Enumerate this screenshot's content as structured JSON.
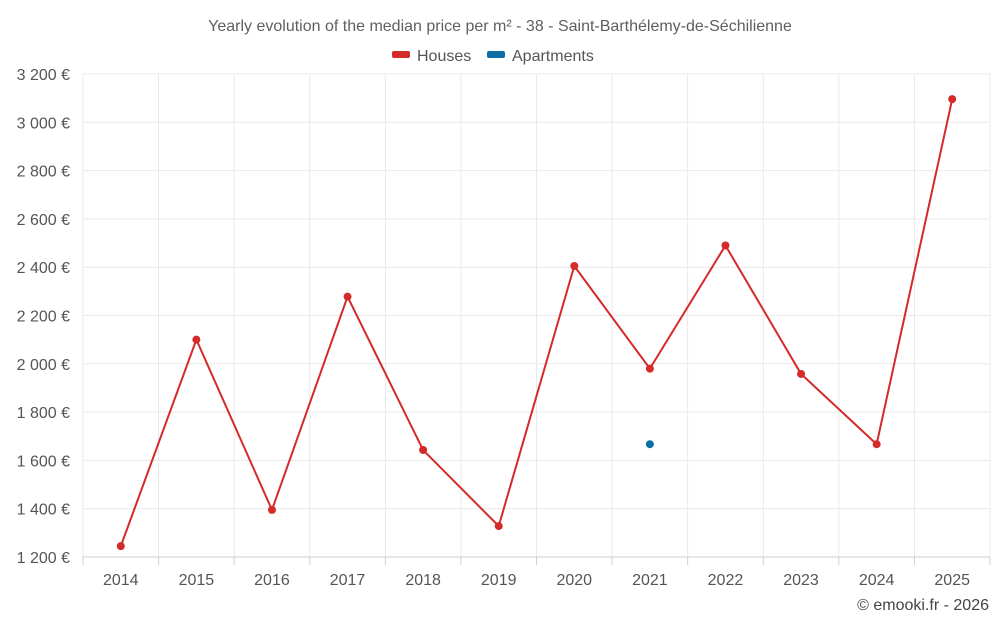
{
  "chart_data": {
    "type": "line",
    "title": "Yearly evolution of the median price per m² - 38 - Saint-Barthélemy-de-Séchilienne",
    "xlabel": "",
    "ylabel": "",
    "categories": [
      "2014",
      "2015",
      "2016",
      "2017",
      "2018",
      "2019",
      "2020",
      "2021",
      "2022",
      "2023",
      "2024",
      "2025"
    ],
    "ylim": [
      1200,
      3200
    ],
    "yticks": [
      1200,
      1400,
      1600,
      1800,
      2000,
      2200,
      2400,
      2600,
      2800,
      3000,
      3200
    ],
    "ytick_labels": [
      "1 200 €",
      "1 400 €",
      "1 600 €",
      "1 800 €",
      "2 000 €",
      "2 200 €",
      "2 400 €",
      "2 600 €",
      "2 800 €",
      "3 000 €",
      "3 200 €"
    ],
    "grid": true,
    "legend_position": "top-center",
    "series": [
      {
        "name": "Houses",
        "color": "#d42a2a",
        "values": [
          1245,
          2100,
          1395,
          2278,
          1643,
          1328,
          2405,
          1980,
          2490,
          1958,
          1667,
          3096
        ]
      },
      {
        "name": "Apartments",
        "color": "#0b6fa4",
        "values": [
          null,
          null,
          null,
          null,
          null,
          null,
          null,
          1667,
          null,
          null,
          null,
          null
        ]
      }
    ],
    "credit": "© emooki.fr - 2026"
  }
}
